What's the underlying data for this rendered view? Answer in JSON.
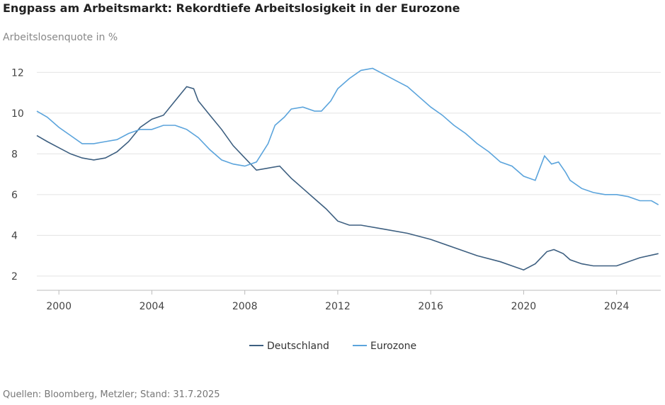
{
  "chart_data": {
    "type": "line",
    "title": "Engpass am Arbeitsmarkt: Rekordtiefe Arbeitslosigkeit in der Eurozone",
    "subtitle": "Arbeitslosenquote in %",
    "source": "Quellen: Bloomberg, Metzler; Stand: 31.7.2025",
    "xlim": [
      1999.05,
      2025.9
    ],
    "xticks": [
      2000,
      2004,
      2008,
      2012,
      2016,
      2020,
      2024
    ],
    "ylim": [
      1.3,
      12.6
    ],
    "yticks": [
      2,
      4,
      6,
      8,
      10,
      12
    ],
    "grid": true,
    "legend": "bottom",
    "series": [
      {
        "name": "Deutschland",
        "color": "#3d5f80",
        "x": [
          1999.05,
          1999.5,
          2000,
          2000.5,
          2001,
          2001.5,
          2002,
          2002.5,
          2003,
          2003.5,
          2004,
          2004.5,
          2005,
          2005.5,
          2005.8,
          2006,
          2006.5,
          2007,
          2007.5,
          2008,
          2008.5,
          2009,
          2009.5,
          2010,
          2010.5,
          2011,
          2011.5,
          2012,
          2012.5,
          2013,
          2014,
          2015,
          2016,
          2017,
          2018,
          2019,
          2019.5,
          2020,
          2020.5,
          2021,
          2021.3,
          2021.7,
          2022,
          2022.5,
          2023,
          2023.5,
          2024,
          2024.5,
          2025,
          2025.8
        ],
        "values": [
          8.9,
          8.6,
          8.3,
          8.0,
          7.8,
          7.7,
          7.8,
          8.1,
          8.6,
          9.3,
          9.7,
          9.9,
          10.6,
          11.3,
          11.2,
          10.6,
          9.9,
          9.2,
          8.4,
          7.8,
          7.2,
          7.3,
          7.4,
          6.8,
          6.3,
          5.8,
          5.3,
          4.7,
          4.5,
          4.5,
          4.3,
          4.1,
          3.8,
          3.4,
          3.0,
          2.7,
          2.5,
          2.3,
          2.6,
          3.2,
          3.3,
          3.1,
          2.8,
          2.6,
          2.5,
          2.5,
          2.5,
          2.7,
          2.9,
          3.1
        ]
      },
      {
        "name": "Eurozone",
        "color": "#5ba4dc",
        "x": [
          1999.05,
          1999.5,
          2000,
          2000.5,
          2001,
          2001.5,
          2002,
          2002.5,
          2003,
          2003.5,
          2004,
          2004.5,
          2005,
          2005.5,
          2006,
          2006.5,
          2007,
          2007.5,
          2008,
          2008.5,
          2009,
          2009.3,
          2009.7,
          2010,
          2010.5,
          2011,
          2011.3,
          2011.7,
          2012,
          2012.5,
          2013,
          2013.5,
          2014,
          2014.5,
          2015,
          2015.5,
          2016,
          2016.5,
          2017,
          2017.5,
          2018,
          2018.5,
          2019,
          2019.5,
          2020,
          2020.5,
          2020.9,
          2021.2,
          2021.5,
          2021.8,
          2022,
          2022.5,
          2023,
          2023.5,
          2024,
          2024.5,
          2025,
          2025.5,
          2025.8
        ],
        "values": [
          10.1,
          9.8,
          9.3,
          8.9,
          8.5,
          8.5,
          8.6,
          8.7,
          9.0,
          9.2,
          9.2,
          9.4,
          9.4,
          9.2,
          8.8,
          8.2,
          7.7,
          7.5,
          7.4,
          7.6,
          8.5,
          9.4,
          9.8,
          10.2,
          10.3,
          10.1,
          10.1,
          10.6,
          11.2,
          11.7,
          12.1,
          12.2,
          11.9,
          11.6,
          11.3,
          10.8,
          10.3,
          9.9,
          9.4,
          9.0,
          8.5,
          8.1,
          7.6,
          7.4,
          6.9,
          6.7,
          7.9,
          7.5,
          7.6,
          7.1,
          6.7,
          6.3,
          6.1,
          6.0,
          6.0,
          5.9,
          5.7,
          5.7,
          5.5
        ]
      }
    ]
  }
}
